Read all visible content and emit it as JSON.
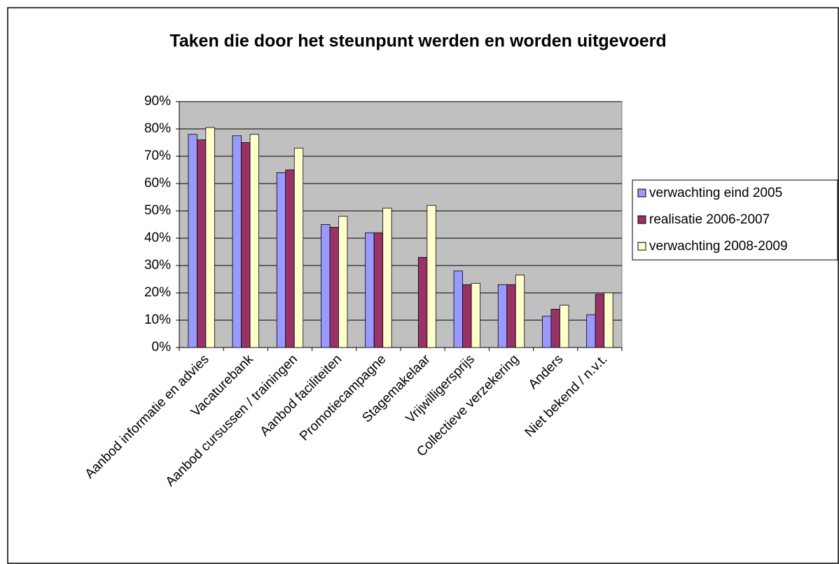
{
  "chart_data": {
    "type": "bar",
    "title": "Taken die door het steunpunt werden en worden uitgevoerd",
    "categories": [
      "Aanbod informatie en advies",
      "Vacaturebank",
      "Aanbod cursussen / trainingen",
      "Aanbod faciliteiten",
      "Promotiecampagne",
      "Stagemakelaar",
      "Vrijwilligersprijs",
      "Collectieve verzekering",
      "Anders",
      "Niet bekend / n.v.t."
    ],
    "series": [
      {
        "name": "verwachting eind 2005",
        "color": "#9999ff",
        "values": [
          78,
          77.5,
          64,
          45,
          42,
          null,
          28,
          23,
          11.5,
          12
        ]
      },
      {
        "name": "realisatie 2006-2007",
        "color": "#993366",
        "values": [
          76,
          75,
          65,
          44,
          42,
          33,
          23,
          23,
          14,
          19.5
        ]
      },
      {
        "name": "verwachting 2008-2009",
        "color": "#ffffcc",
        "values": [
          80.5,
          78,
          73,
          48,
          51,
          52,
          23.5,
          26.5,
          15.5,
          20
        ]
      }
    ],
    "ylim": [
      0,
      90
    ],
    "yticks": [
      {
        "value": 0,
        "label": "0%"
      },
      {
        "value": 10,
        "label": "10%"
      },
      {
        "value": 20,
        "label": "20%"
      },
      {
        "value": 30,
        "label": "30%"
      },
      {
        "value": 40,
        "label": "40%"
      },
      {
        "value": 50,
        "label": "50%"
      },
      {
        "value": 60,
        "label": "60%"
      },
      {
        "value": 70,
        "label": "70%"
      },
      {
        "value": 80,
        "label": "80%"
      },
      {
        "value": 90,
        "label": "90%"
      }
    ],
    "grid": true,
    "legend": "right"
  }
}
